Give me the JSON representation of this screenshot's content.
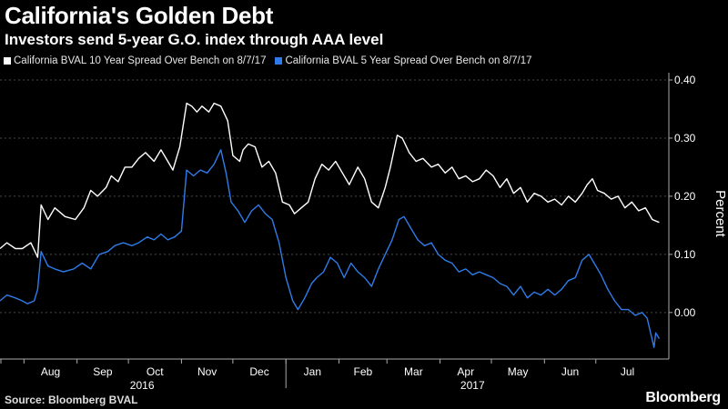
{
  "title": "California's Golden Debt",
  "subtitle": "Investors send 5-year G.O. index through AAA level",
  "source": "Source: Bloomberg BVAL",
  "brand": "Bloomberg",
  "colors": {
    "background": "#000000",
    "series_10y": "#ffffff",
    "series_5y": "#2f7ce8",
    "grid": "#4a4a4a"
  },
  "chart_data": {
    "type": "line",
    "ylabel": "Percent",
    "ylim": [
      -0.08,
      0.4
    ],
    "yticks": [
      0.4,
      0.3,
      0.2,
      0.1,
      0.0
    ],
    "ytick_labels": [
      "0.40",
      "0.30",
      "0.20",
      "0.10",
      "0.00"
    ],
    "y_axis_side": "right",
    "grid": "horizontal dashed",
    "legend": "top-left",
    "x_start": "2016-07-18",
    "x_end": "2017-08-07",
    "month_ticks": [
      {
        "label": "Aug",
        "date": "2016-08-01"
      },
      {
        "label": "Sep",
        "date": "2016-09-01"
      },
      {
        "label": "Oct",
        "date": "2016-10-01"
      },
      {
        "label": "Nov",
        "date": "2016-11-01"
      },
      {
        "label": "Dec",
        "date": "2016-12-01"
      },
      {
        "label": "Jan",
        "date": "2017-01-01"
      },
      {
        "label": "Feb",
        "date": "2017-02-01"
      },
      {
        "label": "Mar",
        "date": "2017-03-01"
      },
      {
        "label": "Apr",
        "date": "2017-04-01"
      },
      {
        "label": "May",
        "date": "2017-05-01"
      },
      {
        "label": "Jun",
        "date": "2017-06-01"
      },
      {
        "label": "Jul",
        "date": "2017-07-01"
      }
    ],
    "year_labels": [
      {
        "label": "2016",
        "from": "2016-07-18",
        "to": "2016-12-31"
      },
      {
        "label": "2017",
        "from": "2017-01-01",
        "to": "2017-08-07"
      }
    ],
    "series": [
      {
        "name": "California BVAL 10 Year Spread Over Bench on 8/7/17",
        "color": "#ffffff",
        "points": [
          [
            "2016-07-18",
            0.11
          ],
          [
            "2016-07-22",
            0.12
          ],
          [
            "2016-07-27",
            0.11
          ],
          [
            "2016-07-31",
            0.11
          ],
          [
            "2016-08-05",
            0.12
          ],
          [
            "2016-08-09",
            0.095
          ],
          [
            "2016-08-11",
            0.185
          ],
          [
            "2016-08-15",
            0.16
          ],
          [
            "2016-08-19",
            0.18
          ],
          [
            "2016-08-25",
            0.165
          ],
          [
            "2016-08-31",
            0.16
          ],
          [
            "2016-09-05",
            0.18
          ],
          [
            "2016-09-09",
            0.21
          ],
          [
            "2016-09-13",
            0.2
          ],
          [
            "2016-09-18",
            0.215
          ],
          [
            "2016-09-21",
            0.235
          ],
          [
            "2016-09-25",
            0.225
          ],
          [
            "2016-09-29",
            0.25
          ],
          [
            "2016-10-03",
            0.25
          ],
          [
            "2016-10-07",
            0.265
          ],
          [
            "2016-10-11",
            0.275
          ],
          [
            "2016-10-16",
            0.26
          ],
          [
            "2016-10-20",
            0.28
          ],
          [
            "2016-10-24",
            0.26
          ],
          [
            "2016-10-27",
            0.245
          ],
          [
            "2016-10-31",
            0.285
          ],
          [
            "2016-11-04",
            0.36
          ],
          [
            "2016-11-07",
            0.355
          ],
          [
            "2016-11-10",
            0.345
          ],
          [
            "2016-11-13",
            0.355
          ],
          [
            "2016-11-17",
            0.345
          ],
          [
            "2016-11-20",
            0.36
          ],
          [
            "2016-11-24",
            0.355
          ],
          [
            "2016-11-28",
            0.33
          ],
          [
            "2016-12-01",
            0.27
          ],
          [
            "2016-12-05",
            0.26
          ],
          [
            "2016-12-07",
            0.28
          ],
          [
            "2016-12-10",
            0.29
          ],
          [
            "2016-12-14",
            0.285
          ],
          [
            "2016-12-18",
            0.25
          ],
          [
            "2016-12-22",
            0.26
          ],
          [
            "2016-12-26",
            0.24
          ],
          [
            "2016-12-30",
            0.19
          ],
          [
            "2017-01-03",
            0.185
          ],
          [
            "2017-01-06",
            0.17
          ],
          [
            "2017-01-10",
            0.18
          ],
          [
            "2017-01-14",
            0.19
          ],
          [
            "2017-01-18",
            0.23
          ],
          [
            "2017-01-22",
            0.255
          ],
          [
            "2017-01-26",
            0.245
          ],
          [
            "2017-01-30",
            0.26
          ],
          [
            "2017-02-03",
            0.24
          ],
          [
            "2017-02-07",
            0.22
          ],
          [
            "2017-02-12",
            0.25
          ],
          [
            "2017-02-16",
            0.23
          ],
          [
            "2017-02-20",
            0.19
          ],
          [
            "2017-02-24",
            0.18
          ],
          [
            "2017-02-28",
            0.215
          ],
          [
            "2017-03-03",
            0.25
          ],
          [
            "2017-03-07",
            0.305
          ],
          [
            "2017-03-10",
            0.3
          ],
          [
            "2017-03-14",
            0.275
          ],
          [
            "2017-03-18",
            0.26
          ],
          [
            "2017-03-22",
            0.265
          ],
          [
            "2017-03-27",
            0.25
          ],
          [
            "2017-03-31",
            0.255
          ],
          [
            "2017-04-04",
            0.24
          ],
          [
            "2017-04-08",
            0.25
          ],
          [
            "2017-04-12",
            0.23
          ],
          [
            "2017-04-16",
            0.235
          ],
          [
            "2017-04-20",
            0.225
          ],
          [
            "2017-04-24",
            0.23
          ],
          [
            "2017-04-28",
            0.245
          ],
          [
            "2017-05-02",
            0.235
          ],
          [
            "2017-05-06",
            0.215
          ],
          [
            "2017-05-10",
            0.23
          ],
          [
            "2017-05-14",
            0.205
          ],
          [
            "2017-05-18",
            0.215
          ],
          [
            "2017-05-22",
            0.19
          ],
          [
            "2017-05-26",
            0.205
          ],
          [
            "2017-05-30",
            0.2
          ],
          [
            "2017-06-03",
            0.19
          ],
          [
            "2017-06-07",
            0.195
          ],
          [
            "2017-06-11",
            0.185
          ],
          [
            "2017-06-15",
            0.2
          ],
          [
            "2017-06-19",
            0.19
          ],
          [
            "2017-06-23",
            0.205
          ],
          [
            "2017-06-26",
            0.22
          ],
          [
            "2017-06-29",
            0.23
          ],
          [
            "2017-07-02",
            0.21
          ],
          [
            "2017-07-06",
            0.205
          ],
          [
            "2017-07-10",
            0.195
          ],
          [
            "2017-07-14",
            0.2
          ],
          [
            "2017-07-18",
            0.18
          ],
          [
            "2017-07-22",
            0.19
          ],
          [
            "2017-07-26",
            0.175
          ],
          [
            "2017-07-30",
            0.18
          ],
          [
            "2017-08-03",
            0.16
          ],
          [
            "2017-08-07",
            0.155
          ]
        ]
      },
      {
        "name": "California BVAL 5 Year Spread Over Bench on 8/7/17",
        "color": "#2f7ce8",
        "points": [
          [
            "2016-07-18",
            0.02
          ],
          [
            "2016-07-22",
            0.03
          ],
          [
            "2016-07-27",
            0.025
          ],
          [
            "2016-07-31",
            0.02
          ],
          [
            "2016-08-03",
            0.015
          ],
          [
            "2016-08-07",
            0.02
          ],
          [
            "2016-08-09",
            0.04
          ],
          [
            "2016-08-11",
            0.105
          ],
          [
            "2016-08-15",
            0.08
          ],
          [
            "2016-08-19",
            0.075
          ],
          [
            "2016-08-24",
            0.07
          ],
          [
            "2016-08-30",
            0.075
          ],
          [
            "2016-09-04",
            0.085
          ],
          [
            "2016-09-09",
            0.075
          ],
          [
            "2016-09-14",
            0.1
          ],
          [
            "2016-09-19",
            0.105
          ],
          [
            "2016-09-23",
            0.115
          ],
          [
            "2016-09-28",
            0.12
          ],
          [
            "2016-10-03",
            0.115
          ],
          [
            "2016-10-07",
            0.12
          ],
          [
            "2016-10-12",
            0.13
          ],
          [
            "2016-10-16",
            0.125
          ],
          [
            "2016-10-20",
            0.135
          ],
          [
            "2016-10-24",
            0.125
          ],
          [
            "2016-10-28",
            0.13
          ],
          [
            "2016-11-01",
            0.14
          ],
          [
            "2016-11-04",
            0.245
          ],
          [
            "2016-11-08",
            0.235
          ],
          [
            "2016-11-12",
            0.245
          ],
          [
            "2016-11-16",
            0.24
          ],
          [
            "2016-11-20",
            0.255
          ],
          [
            "2016-11-24",
            0.28
          ],
          [
            "2016-11-27",
            0.24
          ],
          [
            "2016-11-30",
            0.19
          ],
          [
            "2016-12-04",
            0.175
          ],
          [
            "2016-12-08",
            0.155
          ],
          [
            "2016-12-12",
            0.175
          ],
          [
            "2016-12-16",
            0.185
          ],
          [
            "2016-12-20",
            0.17
          ],
          [
            "2016-12-24",
            0.16
          ],
          [
            "2016-12-28",
            0.12
          ],
          [
            "2017-01-01",
            0.06
          ],
          [
            "2017-01-05",
            0.02
          ],
          [
            "2017-01-08",
            0.005
          ],
          [
            "2017-01-12",
            0.025
          ],
          [
            "2017-01-16",
            0.05
          ],
          [
            "2017-01-19",
            0.06
          ],
          [
            "2017-01-23",
            0.07
          ],
          [
            "2017-01-27",
            0.095
          ],
          [
            "2017-01-31",
            0.085
          ],
          [
            "2017-02-04",
            0.06
          ],
          [
            "2017-02-08",
            0.085
          ],
          [
            "2017-02-12",
            0.07
          ],
          [
            "2017-02-16",
            0.06
          ],
          [
            "2017-02-20",
            0.045
          ],
          [
            "2017-02-24",
            0.075
          ],
          [
            "2017-02-28",
            0.1
          ],
          [
            "2017-03-04",
            0.125
          ],
          [
            "2017-03-08",
            0.16
          ],
          [
            "2017-03-11",
            0.165
          ],
          [
            "2017-03-15",
            0.145
          ],
          [
            "2017-03-19",
            0.125
          ],
          [
            "2017-03-23",
            0.115
          ],
          [
            "2017-03-27",
            0.12
          ],
          [
            "2017-03-31",
            0.1
          ],
          [
            "2017-04-04",
            0.09
          ],
          [
            "2017-04-08",
            0.085
          ],
          [
            "2017-04-12",
            0.07
          ],
          [
            "2017-04-16",
            0.075
          ],
          [
            "2017-04-20",
            0.065
          ],
          [
            "2017-04-24",
            0.07
          ],
          [
            "2017-04-28",
            0.065
          ],
          [
            "2017-05-02",
            0.06
          ],
          [
            "2017-05-06",
            0.05
          ],
          [
            "2017-05-10",
            0.045
          ],
          [
            "2017-05-14",
            0.03
          ],
          [
            "2017-05-18",
            0.045
          ],
          [
            "2017-05-22",
            0.025
          ],
          [
            "2017-05-26",
            0.035
          ],
          [
            "2017-05-30",
            0.03
          ],
          [
            "2017-06-03",
            0.04
          ],
          [
            "2017-06-07",
            0.03
          ],
          [
            "2017-06-11",
            0.04
          ],
          [
            "2017-06-15",
            0.055
          ],
          [
            "2017-06-19",
            0.06
          ],
          [
            "2017-06-23",
            0.09
          ],
          [
            "2017-06-27",
            0.1
          ],
          [
            "2017-06-30",
            0.085
          ],
          [
            "2017-07-04",
            0.065
          ],
          [
            "2017-07-08",
            0.04
          ],
          [
            "2017-07-12",
            0.02
          ],
          [
            "2017-07-16",
            0.005
          ],
          [
            "2017-07-20",
            0.005
          ],
          [
            "2017-07-24",
            -0.005
          ],
          [
            "2017-07-28",
            0.0
          ],
          [
            "2017-07-31",
            -0.01
          ],
          [
            "2017-08-02",
            -0.035
          ],
          [
            "2017-08-04",
            -0.06
          ],
          [
            "2017-08-05",
            -0.035
          ],
          [
            "2017-08-07",
            -0.045
          ]
        ]
      }
    ]
  }
}
